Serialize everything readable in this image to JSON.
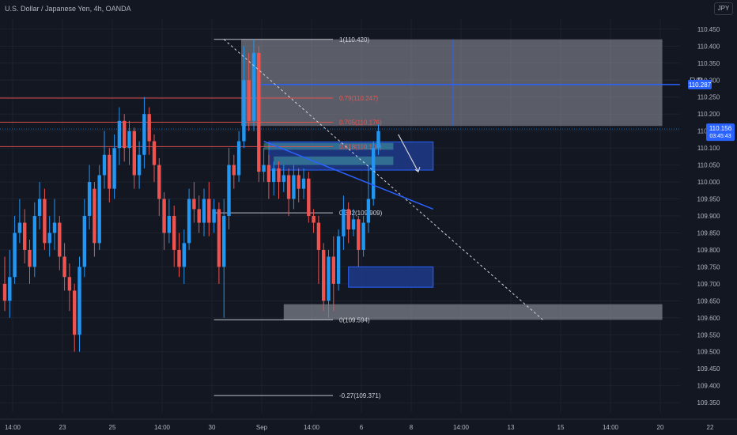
{
  "header": {
    "title": "U.S. Dollar / Japanese Yen, 4h, OANDA",
    "currency_button": "JPY"
  },
  "colors": {
    "background": "#131722",
    "up": "#2196f3",
    "down": "#ef5350",
    "grid": "#1e222d",
    "axis_text": "#b2b5be"
  },
  "chart_data": {
    "type": "candlestick",
    "ylim": [
      109.32,
      110.48
    ],
    "y_ticks": [
      "110.450",
      "110.400",
      "110.350",
      "110.300",
      "110.250",
      "110.200",
      "110.150",
      "110.100",
      "110.050",
      "110.000",
      "109.950",
      "109.900",
      "109.850",
      "109.800",
      "109.750",
      "109.700",
      "109.650",
      "109.600",
      "109.550",
      "109.500",
      "109.450",
      "109.400",
      "109.350"
    ],
    "x_ticks": [
      {
        "label": "14:00",
        "bar": 0
      },
      {
        "label": "23",
        "bar": 10
      },
      {
        "label": "25",
        "bar": 20
      },
      {
        "label": "14:00",
        "bar": 30
      },
      {
        "label": "30",
        "bar": 40
      },
      {
        "label": "Sep",
        "bar": 50
      },
      {
        "label": "14:00",
        "bar": 60
      },
      {
        "label": "6",
        "bar": 70
      },
      {
        "label": "8",
        "bar": 80
      },
      {
        "label": "14:00",
        "bar": 90
      },
      {
        "label": "13",
        "bar": 100
      },
      {
        "label": "15",
        "bar": 110
      },
      {
        "label": "14:00",
        "bar": 120
      },
      {
        "label": "20",
        "bar": 130
      },
      {
        "label": "22",
        "bar": 140
      }
    ],
    "candles": [
      [
        109.7,
        109.65,
        109.78,
        109.62
      ],
      [
        109.65,
        109.72,
        109.8,
        109.6
      ],
      [
        109.72,
        109.85,
        109.9,
        109.7
      ],
      [
        109.85,
        109.88,
        109.95,
        109.82
      ],
      [
        109.88,
        109.8,
        109.92,
        109.76
      ],
      [
        109.8,
        109.75,
        109.83,
        109.7
      ],
      [
        109.75,
        109.9,
        109.94,
        109.72
      ],
      [
        109.9,
        109.95,
        110.0,
        109.86
      ],
      [
        109.95,
        109.82,
        109.98,
        109.8
      ],
      [
        109.82,
        109.85,
        109.9,
        109.78
      ],
      [
        109.85,
        109.88,
        109.95,
        109.8
      ],
      [
        109.88,
        109.78,
        109.9,
        109.74
      ],
      [
        109.78,
        109.72,
        109.82,
        109.68
      ],
      [
        109.72,
        109.68,
        109.76,
        109.62
      ],
      [
        109.68,
        109.55,
        109.7,
        109.5
      ],
      [
        109.55,
        109.75,
        109.78,
        109.5
      ],
      [
        109.75,
        109.9,
        109.95,
        109.72
      ],
      [
        109.9,
        110.0,
        110.05,
        109.86
      ],
      [
        109.98,
        109.82,
        110.0,
        109.78
      ],
      [
        109.82,
        110.02,
        110.05,
        109.8
      ],
      [
        110.02,
        110.08,
        110.15,
        109.98
      ],
      [
        110.08,
        109.98,
        110.1,
        109.94
      ],
      [
        109.98,
        110.1,
        110.14,
        109.95
      ],
      [
        110.1,
        110.18,
        110.22,
        110.05
      ],
      [
        110.18,
        110.1,
        110.2,
        110.06
      ],
      [
        110.1,
        110.15,
        110.18,
        110.05
      ],
      [
        110.15,
        110.02,
        110.16,
        109.98
      ],
      [
        110.02,
        110.08,
        110.12,
        109.98
      ],
      [
        110.08,
        110.2,
        110.25,
        110.04
      ],
      [
        110.2,
        110.12,
        110.22,
        110.08
      ],
      [
        110.12,
        110.05,
        110.14,
        110.0
      ],
      [
        110.05,
        109.95,
        110.07,
        109.9
      ],
      [
        109.95,
        109.85,
        109.97,
        109.8
      ],
      [
        109.85,
        109.9,
        109.95,
        109.82
      ],
      [
        109.9,
        109.8,
        109.93,
        109.75
      ],
      [
        109.8,
        109.75,
        109.85,
        109.72
      ],
      [
        109.75,
        109.82,
        109.86,
        109.7
      ],
      [
        109.82,
        109.95,
        109.98,
        109.8
      ],
      [
        109.95,
        109.92,
        110.0,
        109.88
      ],
      [
        109.92,
        109.88,
        109.96,
        109.85
      ],
      [
        109.88,
        109.95,
        109.98,
        109.84
      ],
      [
        109.95,
        109.88,
        110.0,
        109.84
      ],
      [
        109.88,
        109.92,
        109.95,
        109.85
      ],
      [
        109.92,
        109.75,
        109.94,
        109.7
      ],
      [
        109.75,
        109.9,
        109.95,
        109.6
      ],
      [
        109.9,
        110.05,
        110.1,
        109.86
      ],
      [
        110.05,
        110.02,
        110.08,
        109.98
      ],
      [
        110.02,
        110.12,
        110.15,
        110.0
      ],
      [
        110.12,
        110.3,
        110.4,
        110.1
      ],
      [
        110.3,
        110.18,
        110.38,
        110.15
      ],
      [
        110.18,
        110.38,
        110.42,
        110.15
      ],
      [
        110.38,
        110.03,
        110.4,
        110.0
      ],
      [
        110.03,
        110.05,
        110.1,
        110.0
      ],
      [
        110.05,
        110.0,
        110.08,
        109.95
      ],
      [
        110.0,
        110.04,
        110.06,
        109.96
      ],
      [
        110.04,
        110.0,
        110.06,
        109.95
      ],
      [
        110.0,
        110.02,
        110.05,
        109.97
      ],
      [
        110.02,
        109.95,
        110.04,
        109.9
      ],
      [
        109.95,
        110.02,
        110.05,
        109.92
      ],
      [
        110.02,
        109.98,
        110.04,
        109.94
      ],
      [
        109.98,
        110.01,
        110.04,
        109.95
      ],
      [
        110.01,
        109.9,
        110.03,
        109.88
      ],
      [
        109.9,
        109.88,
        109.92,
        109.85
      ],
      [
        109.88,
        109.8,
        109.9,
        109.7
      ],
      [
        109.8,
        109.65,
        109.82,
        109.62
      ],
      [
        109.65,
        109.78,
        109.8,
        109.6
      ],
      [
        109.78,
        109.7,
        109.84,
        109.62
      ],
      [
        109.7,
        109.84,
        109.86,
        109.68
      ],
      [
        109.84,
        109.92,
        109.96,
        109.8
      ],
      [
        109.92,
        109.86,
        109.94,
        109.82
      ],
      [
        109.86,
        109.89,
        109.92,
        109.84
      ],
      [
        109.89,
        109.8,
        109.9,
        109.75
      ],
      [
        109.8,
        109.88,
        109.9,
        109.78
      ],
      [
        109.88,
        109.95,
        110.05,
        109.85
      ],
      [
        109.95,
        110.1,
        110.12,
        109.93
      ],
      [
        110.1,
        110.15,
        110.17,
        110.08
      ]
    ],
    "fib_levels": [
      {
        "label": "1(110.420)",
        "price": 110.42
      },
      {
        "label": "0.79(110.247)",
        "price": 110.247
      },
      {
        "label": "0.705(110.176)",
        "price": 110.176
      },
      {
        "label": "0.618(110.104)",
        "price": 110.104
      },
      {
        "label": "0.382(109.909)",
        "price": 109.909
      },
      {
        "label": "0(109.594)",
        "price": 109.594
      },
      {
        "label": "-0.27(109.371)",
        "price": 109.371
      }
    ],
    "fvp": {
      "label": "FVP",
      "price": 110.287
    },
    "current_price": {
      "price": "110.156",
      "countdown": "03:45:43"
    }
  }
}
